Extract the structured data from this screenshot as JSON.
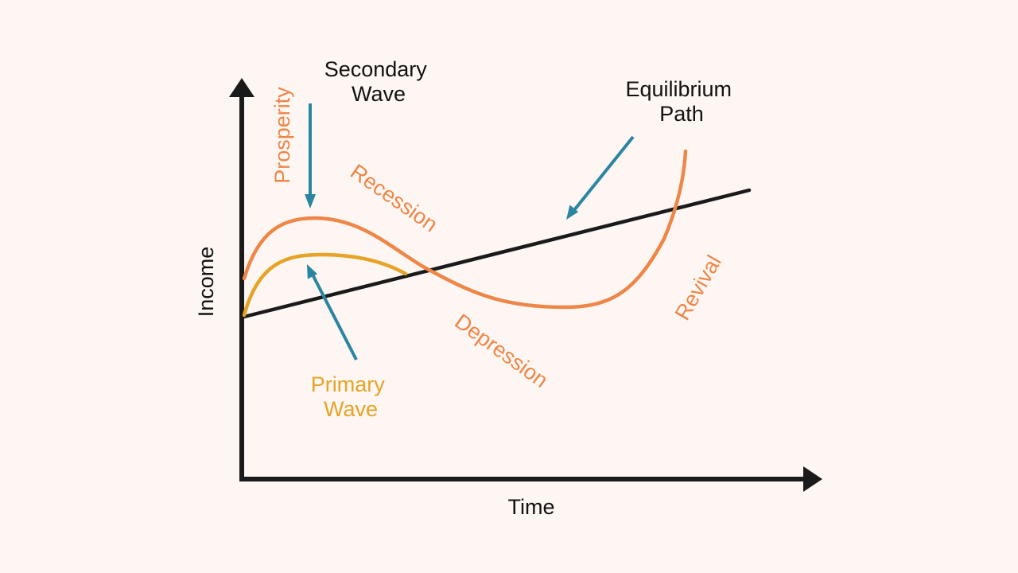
{
  "axes": {
    "x_label": "Time",
    "y_label": "Income"
  },
  "labels": {
    "secondary_wave": [
      "Secondary",
      "Wave"
    ],
    "primary_wave": [
      "Primary",
      "Wave"
    ],
    "equilibrium_path": [
      "Equilibrium",
      "Path"
    ],
    "prosperity": "Prosperity",
    "recession": "Recession",
    "depression": "Depression",
    "revival": "Revival"
  },
  "colors": {
    "background": "#fdf6f2",
    "axis": "#1a1a1a",
    "secondary_wave": "#ee8648",
    "primary_wave": "#e6a326",
    "equilibrium_path": "#1a1a1a",
    "pointer_arrow": "#2a86a0",
    "text": "#111111"
  }
}
